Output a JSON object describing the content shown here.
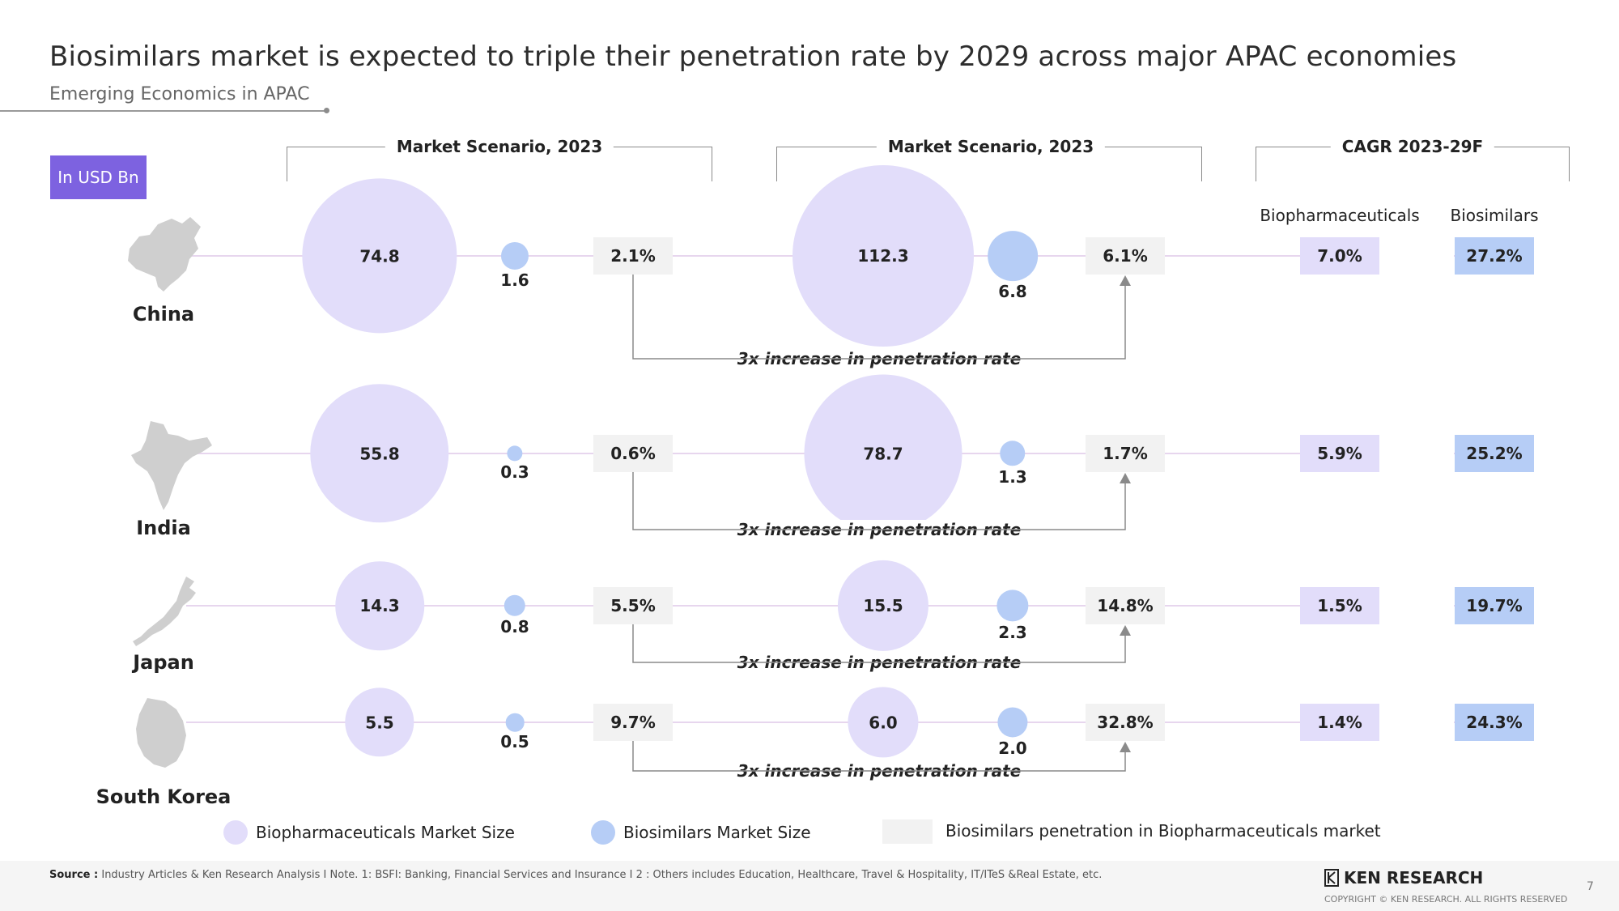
{
  "header": {
    "title": "Biosimilars market is expected to triple their penetration rate by 2029 across major APAC economies",
    "subtitle": "Emerging Economics in APAC",
    "unit_badge": "In USD Bn"
  },
  "brackets": {
    "left": "Market Scenario, 2023",
    "middle": "Market Scenario, 2023",
    "right": "CAGR 2023-29F"
  },
  "cagr_columns": [
    "Biopharmaceuticals",
    "Biosimilars"
  ],
  "annotation": "3x increase in penetration rate",
  "chart_data": {
    "type": "bubble",
    "title": "Biosimilars market is expected to triple their penetration rate by 2029 across major APAC economies",
    "subtitle": "Emerging Economics in APAC",
    "unit": "In USD Bn",
    "countries": [
      {
        "name": "China",
        "bio_2023": "74.8",
        "sim_2023": "1.6",
        "pen_2023": "2.1%",
        "bio_2029": "112.3",
        "sim_2029": "6.8",
        "pen_2029": "6.1%",
        "cagr_bio": "7.0%",
        "cagr_sim": "27.2%"
      },
      {
        "name": "India",
        "bio_2023": "55.8",
        "sim_2023": "0.3",
        "pen_2023": "0.6%",
        "bio_2029": "78.7",
        "sim_2029": "1.3",
        "pen_2029": "1.7%",
        "cagr_bio": "5.9%",
        "cagr_sim": "25.2%"
      },
      {
        "name": "Japan",
        "bio_2023": "14.3",
        "sim_2023": "0.8",
        "pen_2023": "5.5%",
        "bio_2029": "15.5",
        "sim_2029": "2.3",
        "pen_2029": "14.8%",
        "cagr_bio": "1.5%",
        "cagr_sim": "19.7%"
      },
      {
        "name": "South Korea",
        "bio_2023": "5.5",
        "sim_2023": "0.5",
        "pen_2023": "9.7%",
        "bio_2029": "6.0",
        "sim_2029": "2.0",
        "pen_2029": "32.8%",
        "cagr_bio": "1.4%",
        "cagr_sim": "24.3%"
      }
    ]
  },
  "legend": {
    "bio": "Biopharmaceuticals Market Size",
    "sim": "Biosimilars Market Size",
    "pen": "Biosimilars penetration in Biopharmaceuticals market"
  },
  "colors": {
    "bio": "#e2ddfa",
    "sim": "#b6cdf6",
    "pen": "#f2f2f2",
    "accent": "#7d62e0",
    "line": "#e7d6ee"
  },
  "footer": {
    "source_label": "Source :",
    "source_text": "Industry Articles & Ken Research Analysis I Note. 1: BSFI: Banking, Financial Services and Insurance I 2 : Others includes Education, Healthcare, Travel & Hospitality, IT/ITeS &Real Estate,  etc.",
    "logo": "KEN RESEARCH",
    "copyright": "COPYRIGHT © KEN RESEARCH. ALL RIGHTS RESERVED",
    "page": "7"
  }
}
